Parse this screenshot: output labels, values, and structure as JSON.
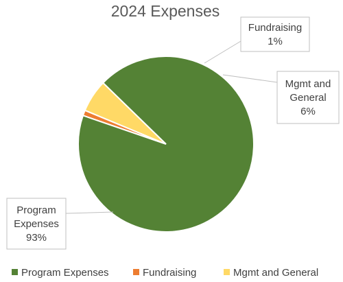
{
  "chart_data": {
    "type": "pie",
    "title": "2024 Expenses",
    "categories": [
      "Program Expenses",
      "Fundraising",
      "Mgmt and General"
    ],
    "values": [
      93,
      1,
      6
    ],
    "data_labels": [
      [
        "Program",
        "Expenses",
        "93%"
      ],
      [
        "Fundraising",
        "1%"
      ],
      [
        "Mgmt and",
        "General",
        "6%"
      ]
    ],
    "colors": [
      "#548235",
      "#ed7d31",
      "#ffd966"
    ],
    "legend_position": "bottom"
  }
}
